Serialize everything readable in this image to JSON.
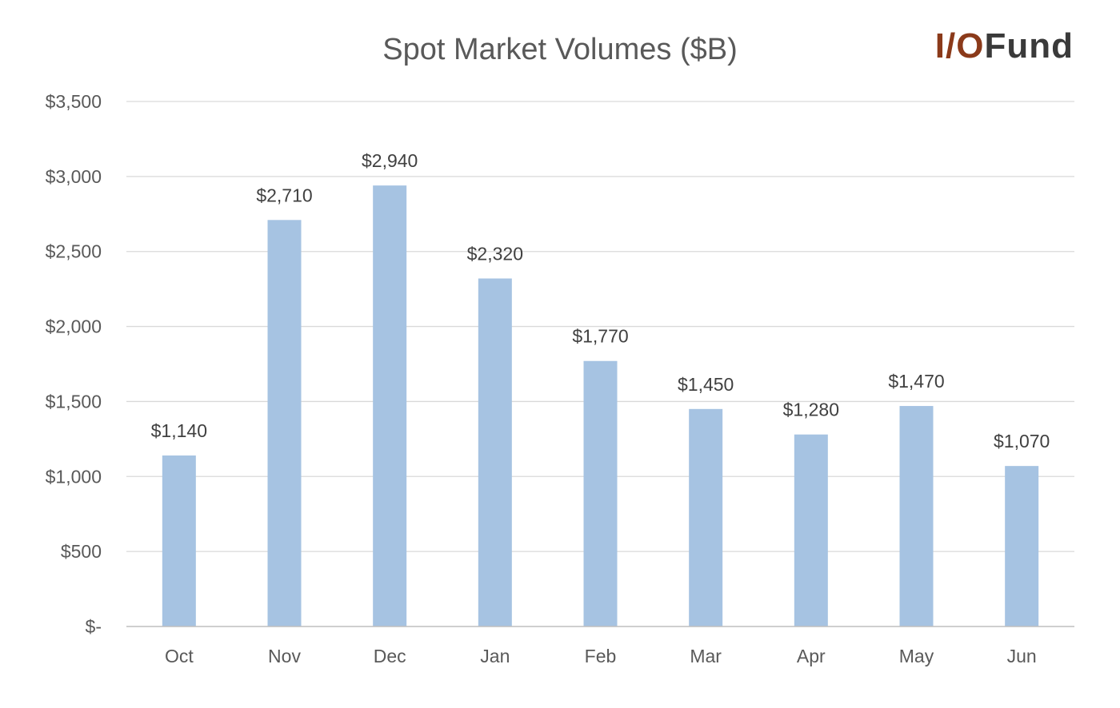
{
  "brand": {
    "prefix": "I/O",
    "suffix": "Fund",
    "prefix_color": "#8b3a1a",
    "suffix_color": "#3a3a3a"
  },
  "colors": {
    "bar": "#a6c3e2"
  },
  "chart_data": {
    "type": "bar",
    "title": "Spot Market Volumes ($B)",
    "xlabel": "",
    "ylabel": "",
    "categories": [
      "Oct",
      "Nov",
      "Dec",
      "Jan",
      "Feb",
      "Mar",
      "Apr",
      "May",
      "Jun"
    ],
    "values": [
      1140,
      2710,
      2940,
      2320,
      1770,
      1450,
      1280,
      1470,
      1070
    ],
    "data_labels": [
      "$1,140",
      "$2,710",
      "$2,940",
      "$2,320",
      "$1,770",
      "$1,450",
      "$1,280",
      "$1,470",
      "$1,070"
    ],
    "ylim": [
      0,
      3500
    ],
    "yticks": [
      0,
      500,
      1000,
      1500,
      2000,
      2500,
      3000,
      3500
    ],
    "ytick_labels": [
      "$-",
      "$500",
      "$1,000",
      "$1,500",
      "$2,000",
      "$2,500",
      "$3,000",
      "$3,500"
    ],
    "grid": true,
    "legend": "none"
  }
}
